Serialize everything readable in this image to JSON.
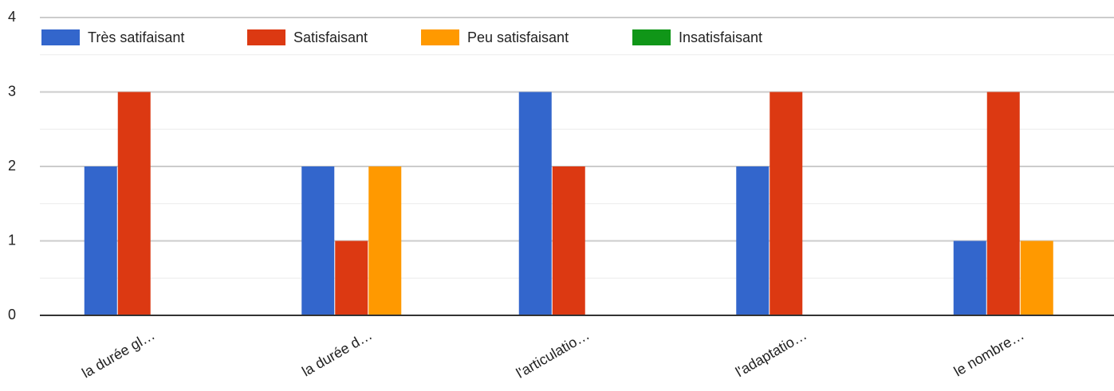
{
  "chart_data": {
    "type": "bar",
    "categories": [
      "la durée gl…",
      "la durée d…",
      "l'articulatio…",
      "l'adaptatio…",
      "le nombre…"
    ],
    "series": [
      {
        "name": "Très satifaisant",
        "color": "#3366cc",
        "values": [
          2,
          2,
          3,
          2,
          1
        ]
      },
      {
        "name": "Satisfaisant",
        "color": "#dc3912",
        "values": [
          3,
          1,
          2,
          3,
          3
        ]
      },
      {
        "name": "Peu satisfaisant",
        "color": "#ff9900",
        "values": [
          0,
          2,
          0,
          0,
          1
        ]
      },
      {
        "name": "Insatisfaisant",
        "color": "#109618",
        "values": [
          0,
          0,
          0,
          0,
          0
        ]
      }
    ],
    "ylim": [
      0,
      4
    ],
    "yticks": [
      0,
      1,
      2,
      3,
      4
    ],
    "grid": true,
    "legend": "top"
  }
}
